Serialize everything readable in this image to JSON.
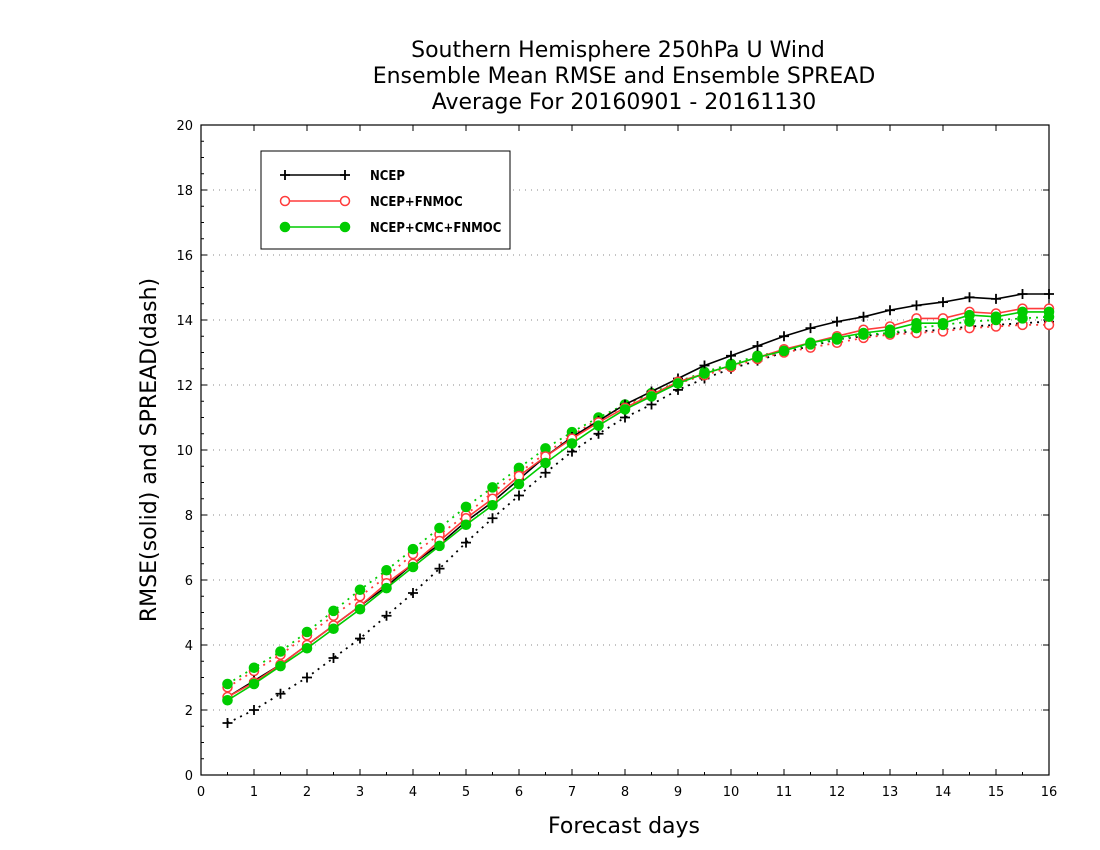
{
  "chart_data": {
    "type": "line",
    "title_lines": [
      "Southern Hemisphere 250hPa U Wind",
      "Ensemble Mean RMSE and Ensemble SPREAD",
      "Average For 20160901 - 20161130"
    ],
    "xlabel": "Forecast days",
    "ylabel": "RMSE(solid) and SPREAD(dash)",
    "xlim": [
      0,
      16
    ],
    "ylim": [
      0,
      20
    ],
    "xticks": [
      "0",
      "1",
      "2",
      "3",
      "4",
      "5",
      "6",
      "7",
      "8",
      "9",
      "10",
      "11",
      "12",
      "13",
      "14",
      "15",
      "16"
    ],
    "yticks": [
      "0",
      "2",
      "4",
      "6",
      "8",
      "10",
      "12",
      "14",
      "16",
      "18",
      "20"
    ],
    "grid": "horizontal dotted",
    "legend_position": "top-left",
    "x": [
      0.5,
      1,
      1.5,
      2,
      2.5,
      3,
      3.5,
      4,
      4.5,
      5,
      5.5,
      6,
      6.5,
      7,
      7.5,
      8,
      8.5,
      9,
      9.5,
      10,
      10.5,
      11,
      11.5,
      12,
      12.5,
      13,
      13.5,
      14,
      14.5,
      15,
      15.5,
      16
    ],
    "series": [
      {
        "name": "NCEP",
        "color": "#000000",
        "marker": "plus",
        "rmse": [
          2.4,
          2.9,
          3.4,
          4.0,
          4.6,
          5.2,
          5.8,
          6.5,
          7.1,
          7.8,
          8.4,
          9.1,
          9.8,
          10.4,
          10.9,
          11.4,
          11.8,
          12.2,
          12.6,
          12.9,
          13.2,
          13.5,
          13.75,
          13.95,
          14.1,
          14.3,
          14.45,
          14.55,
          14.7,
          14.65,
          14.8,
          14.8
        ],
        "spread": [
          1.6,
          2.0,
          2.5,
          3.0,
          3.6,
          4.2,
          4.9,
          5.6,
          6.35,
          7.15,
          7.9,
          8.6,
          9.3,
          9.95,
          10.5,
          11.0,
          11.4,
          11.85,
          12.2,
          12.5,
          12.75,
          13.0,
          13.2,
          13.4,
          13.5,
          13.6,
          13.65,
          13.7,
          13.8,
          13.85,
          13.9,
          13.95
        ]
      },
      {
        "name": "NCEP+FNMOC",
        "color": "#ff3b3b",
        "marker": "open-circle",
        "rmse": [
          2.4,
          2.85,
          3.4,
          4.0,
          4.6,
          5.2,
          5.9,
          6.5,
          7.2,
          7.9,
          8.5,
          9.2,
          9.8,
          10.35,
          10.85,
          11.3,
          11.7,
          12.1,
          12.35,
          12.6,
          12.85,
          13.1,
          13.3,
          13.5,
          13.7,
          13.8,
          14.05,
          14.05,
          14.25,
          14.2,
          14.35,
          14.35
        ],
        "spread": [
          2.7,
          3.2,
          3.7,
          4.3,
          4.9,
          5.5,
          6.1,
          6.8,
          7.4,
          8.0,
          8.7,
          9.3,
          9.9,
          10.45,
          10.95,
          11.35,
          11.7,
          12.05,
          12.3,
          12.55,
          12.8,
          13.0,
          13.15,
          13.3,
          13.45,
          13.55,
          13.6,
          13.65,
          13.75,
          13.8,
          13.85,
          13.85
        ]
      },
      {
        "name": "NCEP+CMC+FNMOC",
        "color": "#00cc00",
        "marker": "filled-circle",
        "rmse": [
          2.3,
          2.8,
          3.35,
          3.9,
          4.5,
          5.1,
          5.75,
          6.4,
          7.05,
          7.7,
          8.3,
          8.95,
          9.6,
          10.2,
          10.75,
          11.25,
          11.65,
          12.05,
          12.35,
          12.6,
          12.85,
          13.05,
          13.3,
          13.45,
          13.6,
          13.7,
          13.9,
          13.9,
          14.15,
          14.1,
          14.25,
          14.25
        ],
        "spread": [
          2.8,
          3.3,
          3.8,
          4.4,
          5.05,
          5.7,
          6.3,
          6.95,
          7.6,
          8.25,
          8.85,
          9.45,
          10.05,
          10.55,
          11.0,
          11.4,
          11.75,
          12.1,
          12.4,
          12.65,
          12.9,
          13.05,
          13.25,
          13.4,
          13.55,
          13.6,
          13.75,
          13.85,
          13.95,
          14.0,
          14.05,
          14.1
        ]
      }
    ]
  }
}
